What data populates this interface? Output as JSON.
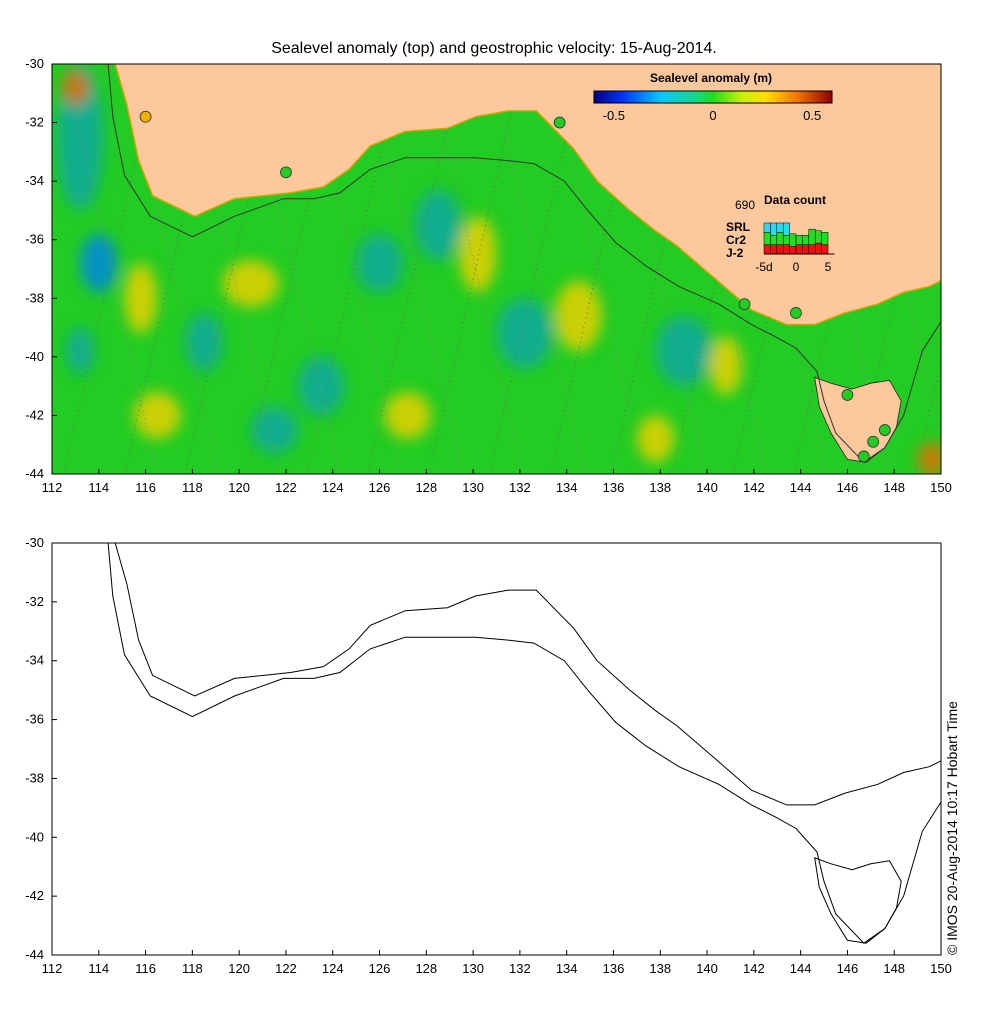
{
  "chart_data": [
    {
      "type": "heatmap",
      "title": "Sealevel anomaly (top) and geostrophic velocity: 15-Aug-2014.",
      "x": [
        112,
        114,
        116,
        118,
        120,
        122,
        124,
        126,
        128,
        130,
        132,
        134,
        136,
        138,
        140,
        142,
        144,
        146,
        148,
        150
      ],
      "xlim": [
        112,
        150
      ],
      "y": [
        -30,
        -32,
        -34,
        -36,
        -38,
        -40,
        -42,
        -44
      ],
      "ylim": [
        -44,
        -30
      ],
      "x_tick_labels": [
        "112",
        "114",
        "116",
        "118",
        "120",
        "122",
        "124",
        "126",
        "128",
        "130",
        "132",
        "134",
        "136",
        "138",
        "140",
        "142",
        "144",
        "146",
        "148",
        "150"
      ],
      "y_tick_labels": [
        "-30",
        "-32",
        "-34",
        "-36",
        "-38",
        "-40",
        "-42",
        "-44"
      ],
      "colorbar": {
        "title": "Sealevel anomaly (m)",
        "range": [
          -0.6,
          0.6
        ],
        "tick_labels": [
          "-0.5",
          "0",
          "0.5"
        ],
        "tick_values": [
          -0.5,
          0,
          0.5
        ]
      },
      "colors": {
        "land": "#fcc89c",
        "neutral": "#22cc22",
        "pos": "#e8d000",
        "neg": "#10a8a0"
      },
      "data_count": {
        "title": "Data count",
        "total": "690",
        "legend": [
          {
            "label": "SRL",
            "color": "#22ddee"
          },
          {
            "label": "Cr2",
            "color": "#22dd22"
          },
          {
            "label": "J-2",
            "color": "#ee1111"
          }
        ],
        "x_tick_labels": [
          "-5d",
          "0",
          "5"
        ],
        "x_tick_values": [
          -5,
          0,
          5
        ],
        "bars": {
          "J-2": [
            3,
            3,
            3,
            3,
            2.5,
            3,
            3,
            3,
            3.5,
            3,
            0
          ],
          "Cr2": [
            4,
            3,
            4,
            3,
            4,
            3,
            3,
            5,
            4,
            4,
            0
          ],
          "SRL": [
            3,
            4,
            3,
            4,
            0,
            0,
            0,
            0,
            0,
            0,
            0
          ]
        }
      }
    },
    {
      "type": "line",
      "title": "",
      "xlim": [
        112,
        150
      ],
      "ylim": [
        -44,
        -30
      ],
      "x_tick_labels": [
        "112",
        "114",
        "116",
        "118",
        "120",
        "122",
        "124",
        "126",
        "128",
        "130",
        "132",
        "134",
        "136",
        "138",
        "140",
        "142",
        "144",
        "146",
        "148",
        "150"
      ],
      "y_tick_labels": [
        "-30",
        "-32",
        "-34",
        "-36",
        "-38",
        "-40",
        "-42",
        "-44"
      ],
      "series": [
        {
          "name": "coastline",
          "x": [
            114.7,
            115.2,
            115.7,
            116.3,
            118.1,
            119.8,
            122.2,
            123.6,
            124.7,
            125.6,
            127.1,
            128.9,
            130.1,
            131.5,
            132.7,
            134.3,
            135.3,
            136.7,
            137.8,
            138.7,
            140.3,
            141.9,
            143.4,
            144.6,
            145.9,
            147.3,
            148.4,
            149.5,
            150
          ],
          "y": [
            -30.0,
            -31.4,
            -33.3,
            -34.5,
            -35.2,
            -34.6,
            -34.4,
            -34.2,
            -33.6,
            -32.8,
            -32.3,
            -32.2,
            -31.8,
            -31.6,
            -31.6,
            -32.9,
            -34.0,
            -35.0,
            -35.7,
            -36.2,
            -37.3,
            -38.4,
            -38.9,
            -38.9,
            -38.5,
            -38.2,
            -37.8,
            -37.6,
            -37.4
          ]
        },
        {
          "name": "shelf-edge",
          "x": [
            114.4,
            114.6,
            115.1,
            116.2,
            118.0,
            119.8,
            121.9,
            123.2,
            124.3,
            125.6,
            127.1,
            128.9,
            130.1,
            131.5,
            132.6,
            133.9,
            134.9,
            136.1,
            137.4,
            138.8,
            140.5,
            141.9,
            142.9,
            143.8,
            144.7,
            145.0,
            145.5,
            146.7,
            147.6,
            148.4,
            149.2,
            150
          ],
          "y": [
            -30.0,
            -31.8,
            -33.8,
            -35.2,
            -35.9,
            -35.2,
            -34.6,
            -34.6,
            -34.4,
            -33.6,
            -33.2,
            -33.2,
            -33.2,
            -33.3,
            -33.4,
            -34.0,
            -35.0,
            -36.1,
            -36.9,
            -37.6,
            -38.2,
            -38.9,
            -39.3,
            -39.7,
            -40.5,
            -41.5,
            -42.6,
            -43.6,
            -43.1,
            -42.0,
            -39.8,
            -38.8
          ]
        }
      ],
      "copyright": "© IMOS 20-Aug-2014 10:17 Hobart Time"
    }
  ]
}
